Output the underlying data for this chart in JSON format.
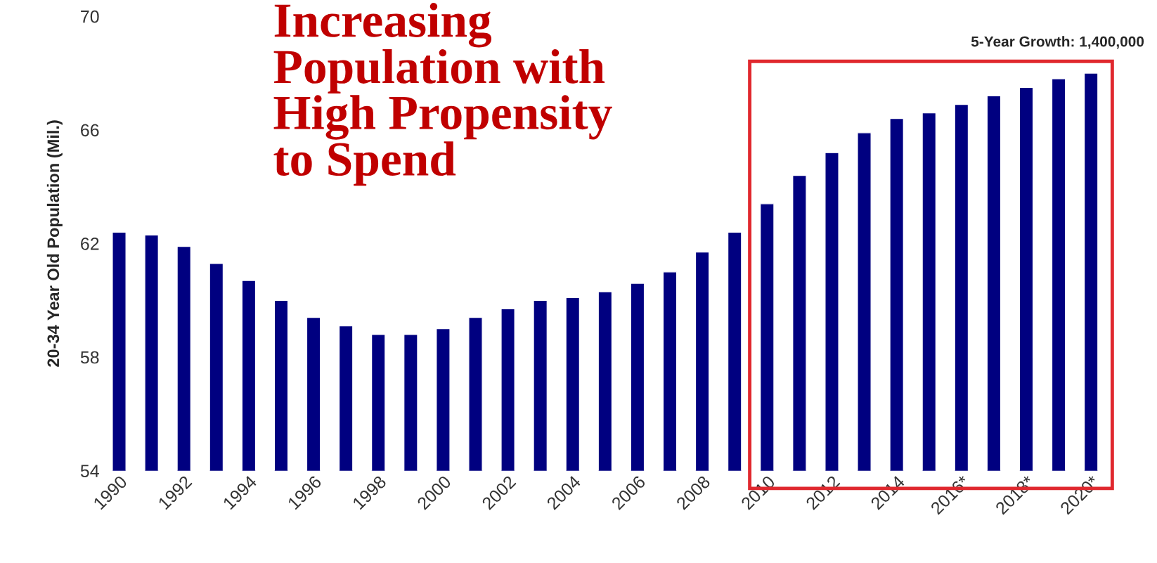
{
  "chart_data": {
    "type": "bar",
    "title": "Increasing\nPopulation with\nHigh Propensity\nto Spend",
    "ylabel": "20-34 Year Old Population (Mil.)",
    "annotations": [
      "5-Year Growth: 1,400,000"
    ],
    "categories": [
      "1990",
      null,
      "1992",
      null,
      "1994",
      null,
      "1996",
      null,
      "1998",
      null,
      "2000",
      null,
      "2002",
      null,
      "2004",
      null,
      "2006",
      null,
      "2008",
      null,
      "2010",
      null,
      "2012",
      null,
      "2014",
      null,
      "2016*",
      null,
      "2018*",
      null,
      "2020*"
    ],
    "values": [
      62.4,
      62.3,
      61.9,
      61.3,
      60.7,
      60.0,
      59.4,
      59.1,
      58.8,
      58.8,
      59.0,
      59.4,
      59.7,
      60.0,
      60.1,
      60.3,
      60.6,
      61.0,
      61.7,
      62.4,
      63.4,
      64.4,
      65.2,
      65.9,
      66.4,
      66.6,
      66.9,
      67.2,
      67.5,
      67.8,
      68.0
    ],
    "color": "#000080",
    "ylim": [
      54,
      70
    ],
    "yticks": [
      54,
      58,
      62,
      66,
      70
    ]
  }
}
